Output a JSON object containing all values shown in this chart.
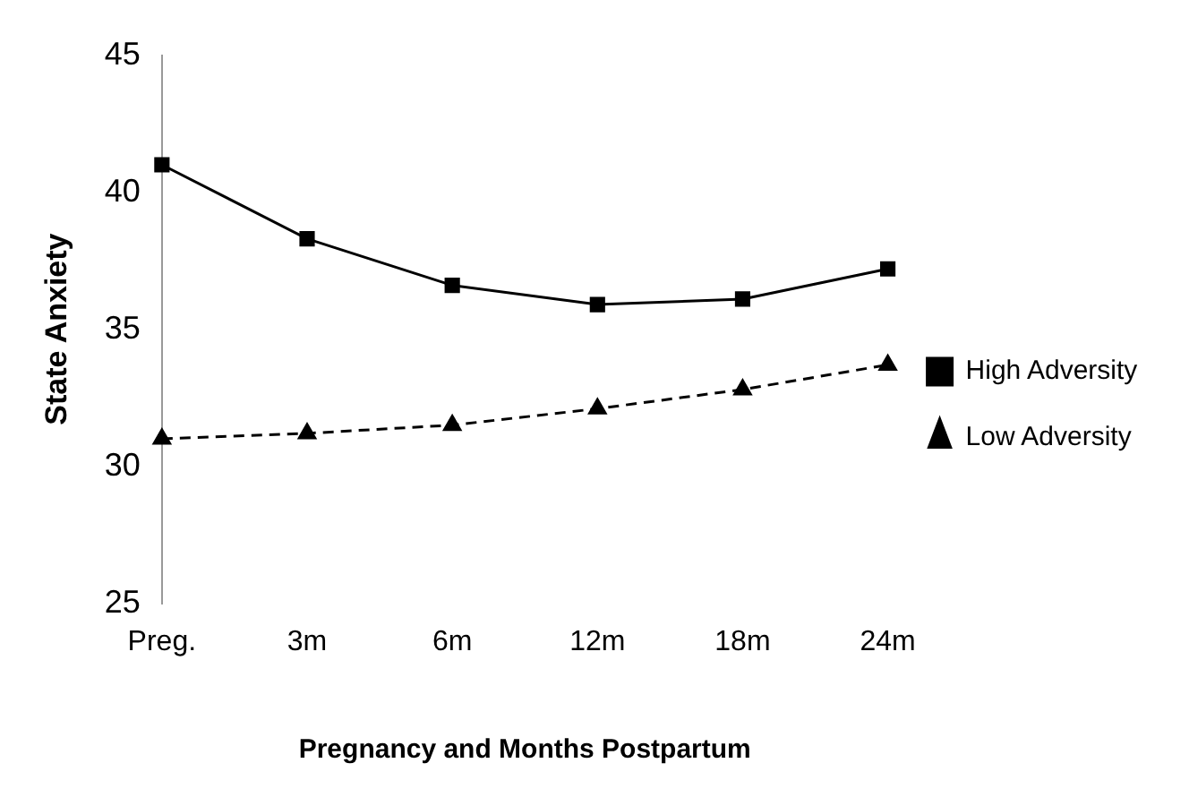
{
  "chart_data": {
    "type": "line",
    "xlabel": "Pregnancy and Months Postpartum",
    "ylabel": "State Anxiety",
    "categories": [
      "Preg.",
      "3m",
      "6m",
      "12m",
      "18m",
      "24m"
    ],
    "series": [
      {
        "name": "High Adversity",
        "color": "#000000",
        "values": [
          41.0,
          38.3,
          36.6,
          35.9,
          36.1,
          37.2
        ],
        "marker": "square",
        "line_style": "solid"
      },
      {
        "name": "Low Adversity",
        "color": "#000000",
        "values": [
          31.0,
          31.2,
          31.5,
          32.1,
          32.8,
          33.7
        ],
        "marker": "triangle",
        "line_style": "dashed"
      }
    ],
    "ylim": [
      25,
      45
    ],
    "yticks": [
      25,
      30,
      35,
      40,
      45
    ],
    "grid": false,
    "legend": "right"
  }
}
